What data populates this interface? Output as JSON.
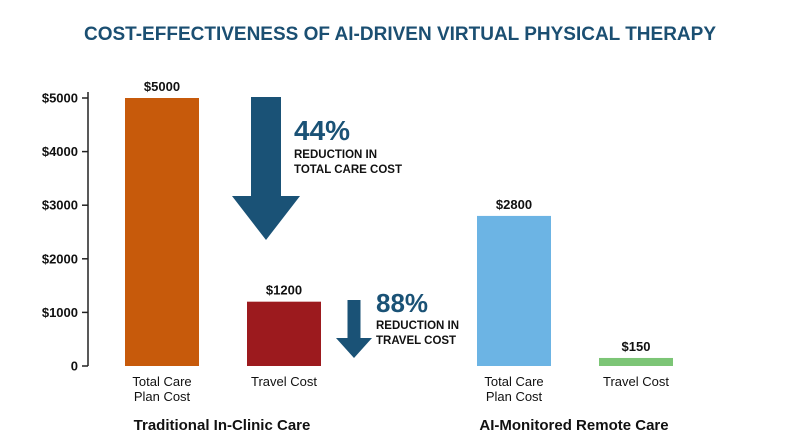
{
  "chart_data": {
    "type": "bar",
    "title": "COST-EFFECTIVENESS OF AI-DRIVEN VIRTUAL PHYSICAL THERAPY",
    "ylim": [
      0,
      5000
    ],
    "yticks": [
      "0",
      "$1000",
      "$2000",
      "$3000",
      "$4000",
      "$5000"
    ],
    "grid": false,
    "groups": [
      {
        "name": "Traditional In-Clinic Care",
        "bars": [
          {
            "category": [
              "Total Care",
              "Plan Cost"
            ],
            "value": 5000,
            "label": "$5000",
            "color": "#c75a0b"
          },
          {
            "category": [
              "Travel Cost"
            ],
            "value": 1200,
            "label": "$1200",
            "color": "#9c1a1e"
          }
        ]
      },
      {
        "name": "AI-Monitored Remote Care",
        "bars": [
          {
            "category": [
              "Total Care",
              "Plan Cost"
            ],
            "value": 2800,
            "label": "$2800",
            "color": "#6cb4e4"
          },
          {
            "category": [
              "Travel Cost"
            ],
            "value": 150,
            "label": "$150",
            "color": "#7cc576"
          }
        ]
      }
    ],
    "annotations": [
      {
        "value": "44%",
        "lines": [
          "REDUCTION IN",
          "TOTAL CARE COST"
        ]
      },
      {
        "value": "88%",
        "lines": [
          "REDUCTION IN",
          "TRAVEL COST"
        ]
      }
    ]
  },
  "colors": {
    "title": "#1b4f72",
    "arrow": "#1a5276",
    "axis": "#222222"
  }
}
